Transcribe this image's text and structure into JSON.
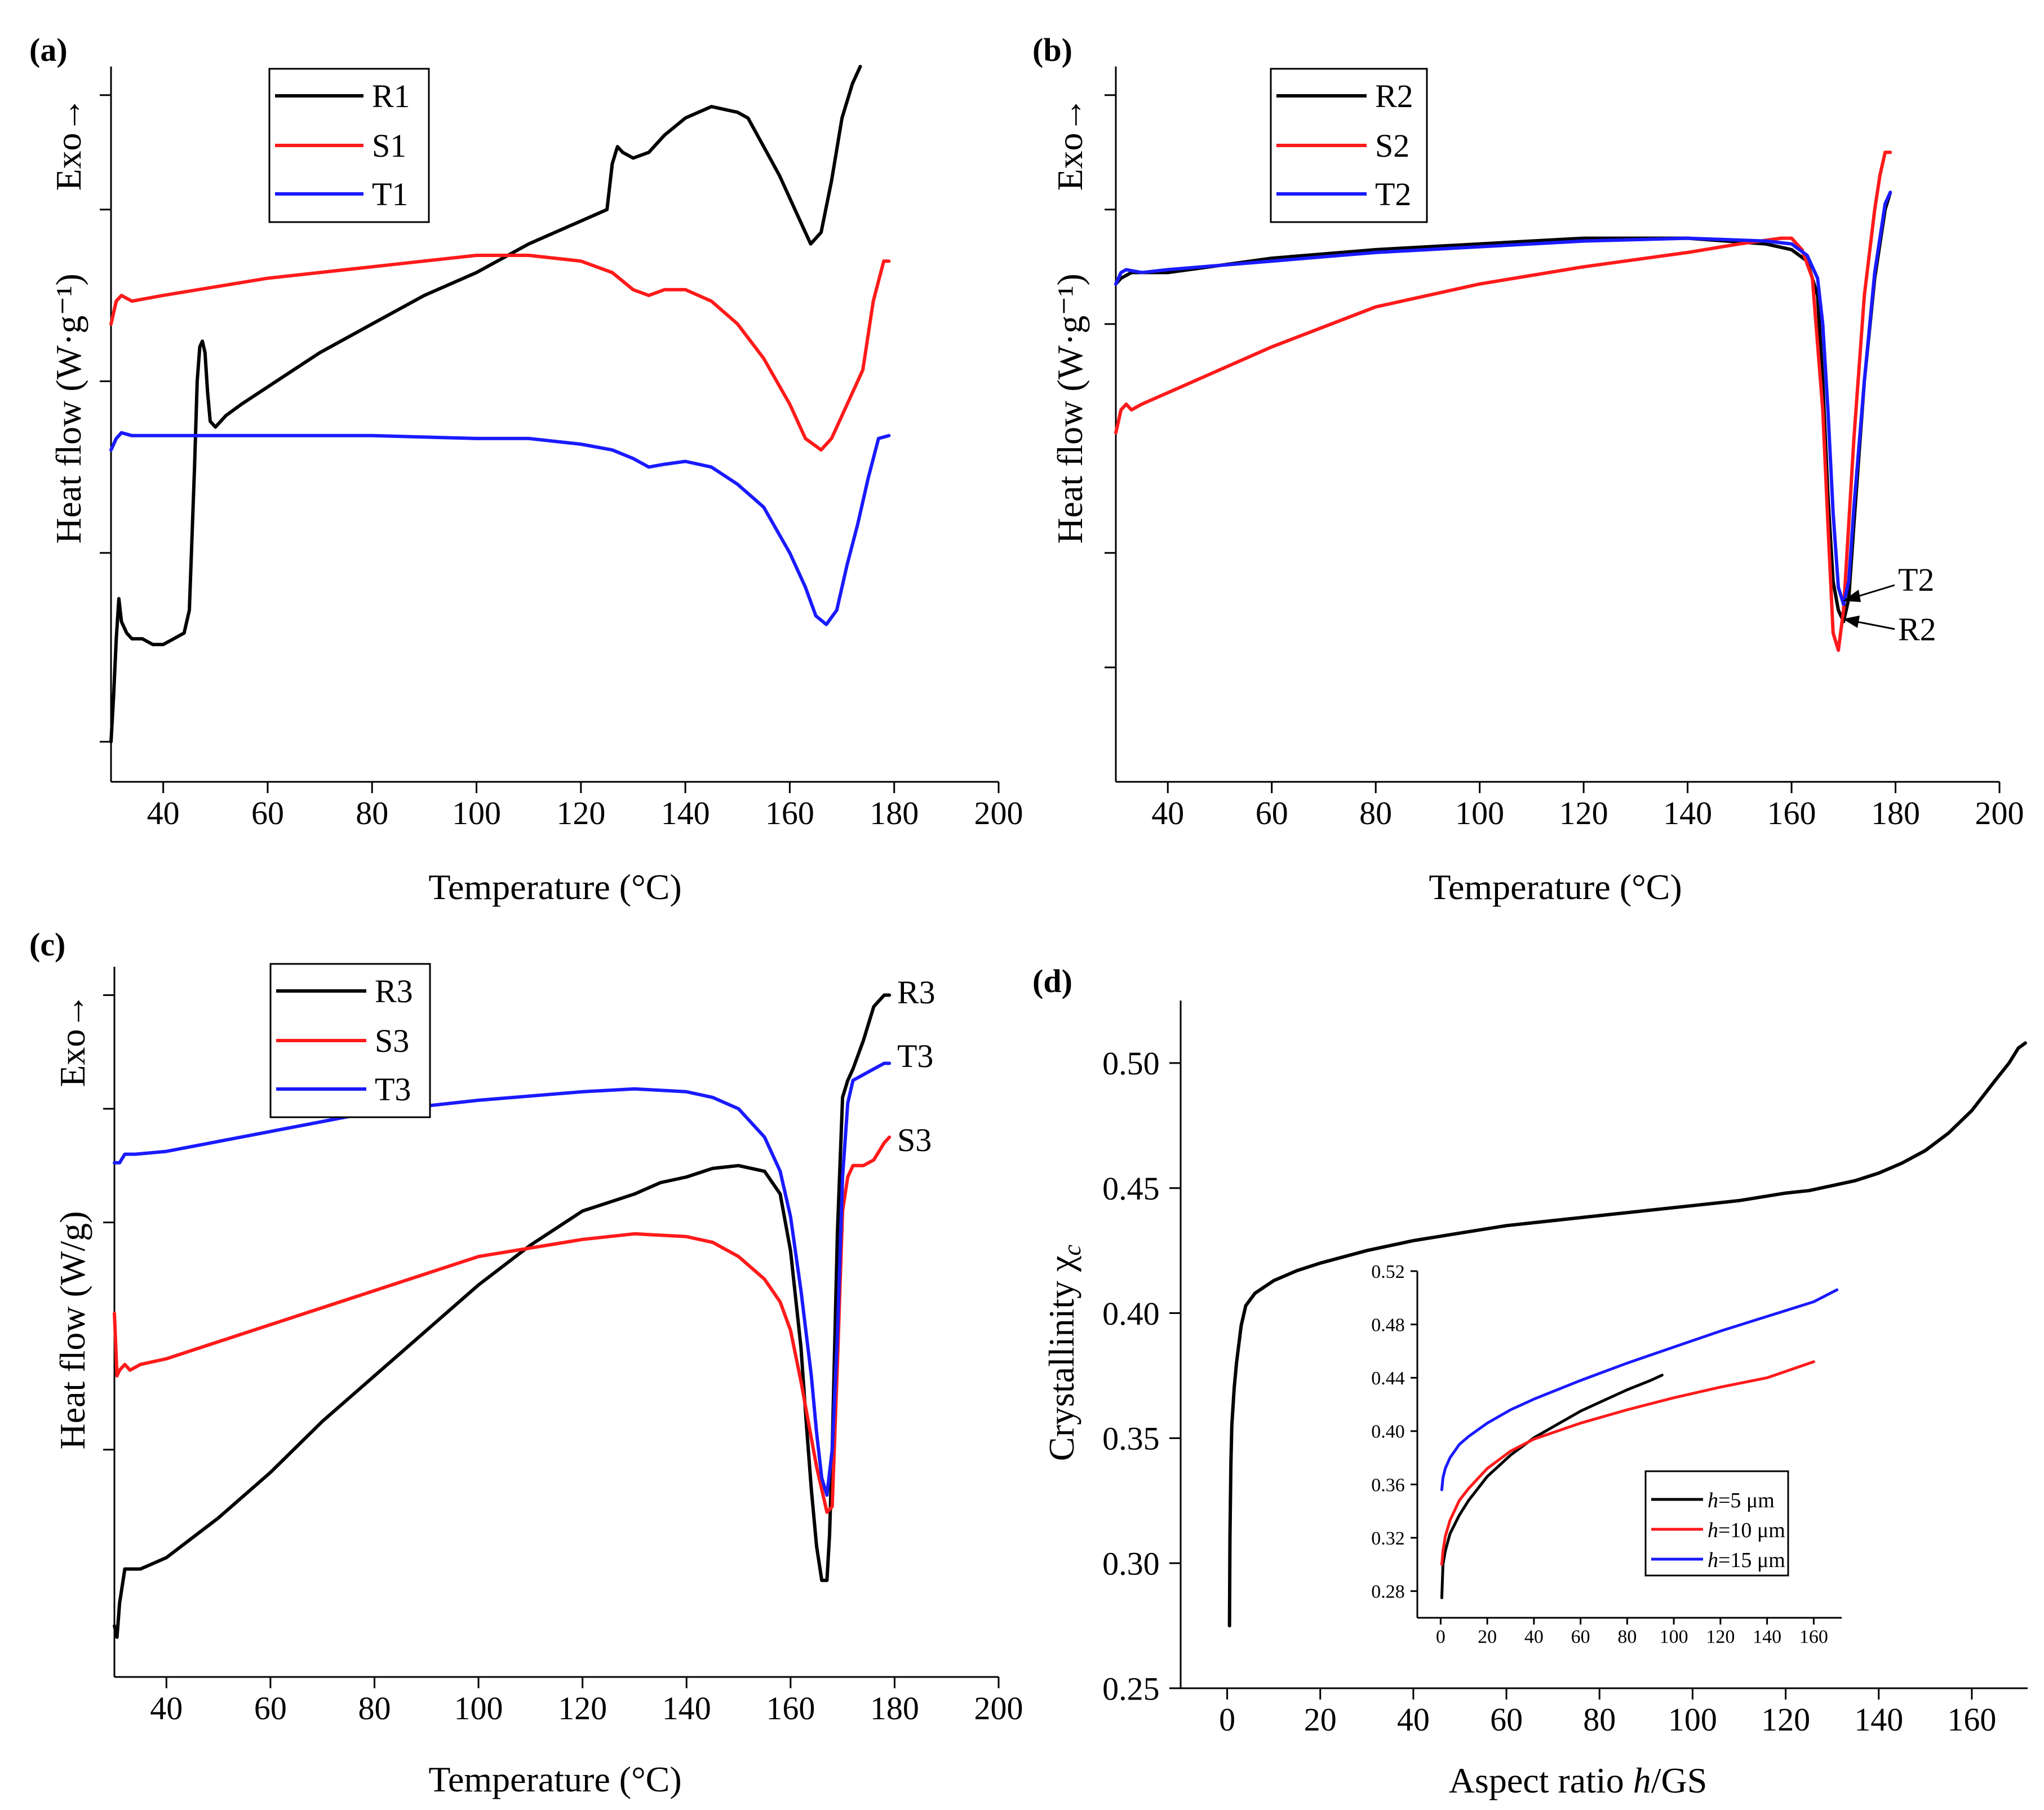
{
  "colors": {
    "black": "#000000",
    "red": "#ff1a1a",
    "blue": "#1a1aff",
    "axis": "#000000"
  },
  "chart_data": [
    {
      "panel_label": "(a)",
      "type": "line",
      "xlabel": "Temperature (°C)",
      "ylabel": "Heat flow (W·g⁻¹)",
      "exo_label": "Exo→",
      "xlim": [
        30,
        200
      ],
      "xticks": [
        40,
        60,
        80,
        100,
        120,
        140,
        160,
        180,
        200
      ],
      "ylim": [
        0,
        12.5
      ],
      "y_ticks_unlabeled": [
        0.7,
        4,
        7,
        10,
        12
      ],
      "legend": [
        "R1",
        "S1",
        "T1"
      ],
      "series": [
        {
          "name": "R1",
          "color": "black",
          "x": [
            30,
            30.5,
            31,
            31.5,
            32,
            33,
            34,
            36,
            38,
            40,
            42,
            44,
            45,
            46,
            46.5,
            47,
            47.5,
            48,
            48.5,
            49,
            50,
            52,
            55,
            60,
            70,
            80,
            90,
            100,
            110,
            120,
            125,
            126,
            127,
            128,
            130,
            133,
            136,
            140,
            145,
            150,
            152,
            155,
            158,
            160,
            162,
            164,
            166,
            168,
            170,
            172,
            173.5
          ],
          "y": [
            0.7,
            1.5,
            2.5,
            3.2,
            2.8,
            2.6,
            2.5,
            2.5,
            2.4,
            2.4,
            2.5,
            2.6,
            3.0,
            5.5,
            7.0,
            7.6,
            7.7,
            7.5,
            6.8,
            6.3,
            6.2,
            6.4,
            6.6,
            6.9,
            7.5,
            8.0,
            8.5,
            8.9,
            9.4,
            9.8,
            10.0,
            10.8,
            11.1,
            11.0,
            10.9,
            11.0,
            11.3,
            11.6,
            11.8,
            11.7,
            11.6,
            11.1,
            10.6,
            10.2,
            9.8,
            9.4,
            9.6,
            10.5,
            11.6,
            12.2,
            12.5
          ]
        },
        {
          "name": "S1",
          "color": "red",
          "x": [
            30,
            31,
            32,
            34,
            40,
            60,
            80,
            100,
            110,
            120,
            126,
            130,
            133,
            136,
            140,
            145,
            150,
            155,
            160,
            163,
            166,
            168,
            170,
            172,
            174,
            176,
            178,
            179
          ],
          "y": [
            8.0,
            8.4,
            8.5,
            8.4,
            8.5,
            8.8,
            9.0,
            9.2,
            9.2,
            9.1,
            8.9,
            8.6,
            8.5,
            8.6,
            8.6,
            8.4,
            8.0,
            7.4,
            6.6,
            6.0,
            5.8,
            6.0,
            6.4,
            6.8,
            7.2,
            8.4,
            9.1,
            9.1
          ]
        },
        {
          "name": "T1",
          "color": "blue",
          "x": [
            30,
            31,
            32,
            34,
            40,
            60,
            80,
            100,
            110,
            120,
            126,
            130,
            133,
            136,
            140,
            145,
            150,
            155,
            160,
            163,
            165,
            167,
            169,
            171,
            173,
            175,
            177,
            179
          ],
          "y": [
            5.8,
            6.0,
            6.1,
            6.05,
            6.05,
            6.05,
            6.05,
            6.0,
            6.0,
            5.9,
            5.8,
            5.65,
            5.5,
            5.55,
            5.6,
            5.5,
            5.2,
            4.8,
            4.0,
            3.4,
            2.9,
            2.75,
            3.0,
            3.8,
            4.5,
            5.3,
            6.0,
            6.05
          ]
        }
      ]
    },
    {
      "panel_label": "(b)",
      "type": "line",
      "xlabel": "Temperature (°C)",
      "ylabel": "Heat flow (W·g⁻¹)",
      "exo_label": "Exo→",
      "xlim": [
        30,
        200
      ],
      "xticks": [
        40,
        60,
        80,
        100,
        120,
        140,
        160,
        180,
        200
      ],
      "ylim": [
        0,
        12.5
      ],
      "y_ticks_unlabeled": [
        2,
        4,
        8,
        10,
        12
      ],
      "legend": [
        "R2",
        "S2",
        "T2"
      ],
      "annotations": [
        "T2",
        "R2"
      ],
      "series": [
        {
          "name": "R2",
          "color": "black",
          "x": [
            30,
            31,
            33,
            40,
            60,
            80,
            100,
            120,
            140,
            155,
            160,
            163,
            165,
            166,
            167,
            168,
            169,
            170,
            171,
            172,
            174,
            176,
            178,
            179
          ],
          "y": [
            8.7,
            8.8,
            8.9,
            8.9,
            9.15,
            9.3,
            9.4,
            9.5,
            9.5,
            9.4,
            9.3,
            9.1,
            8.5,
            7.0,
            5.0,
            3.5,
            3.0,
            2.8,
            3.2,
            4.5,
            7.0,
            8.8,
            10.0,
            10.3
          ]
        },
        {
          "name": "S2",
          "color": "red",
          "x": [
            30,
            31,
            32,
            33,
            35,
            40,
            60,
            80,
            100,
            120,
            140,
            150,
            158,
            160,
            162,
            164,
            166,
            167,
            168,
            169,
            170,
            172,
            174,
            176,
            177,
            178,
            179
          ],
          "y": [
            6.1,
            6.5,
            6.6,
            6.5,
            6.6,
            6.8,
            7.6,
            8.3,
            8.7,
            9.0,
            9.25,
            9.4,
            9.5,
            9.5,
            9.3,
            8.8,
            6.5,
            4.5,
            2.6,
            2.3,
            3.0,
            6.0,
            8.5,
            10.0,
            10.6,
            11.0,
            11.0
          ]
        },
        {
          "name": "T2",
          "color": "blue",
          "x": [
            30,
            31,
            32,
            35,
            40,
            60,
            80,
            100,
            120,
            140,
            155,
            160,
            163,
            165,
            166,
            167,
            168,
            169,
            170,
            171,
            172,
            174,
            176,
            178,
            179
          ],
          "y": [
            8.7,
            8.9,
            8.95,
            8.9,
            8.95,
            9.1,
            9.25,
            9.35,
            9.45,
            9.5,
            9.45,
            9.4,
            9.2,
            8.8,
            8.0,
            6.5,
            4.7,
            3.4,
            3.1,
            3.5,
            4.8,
            7.0,
            8.9,
            10.1,
            10.3
          ]
        }
      ]
    },
    {
      "panel_label": "(c)",
      "type": "line",
      "xlabel": "Temperature (°C)",
      "ylabel": "Heat flow (W/g)",
      "exo_label": "Exo→",
      "xlim": [
        30,
        200
      ],
      "xticks": [
        40,
        60,
        80,
        100,
        120,
        140,
        160,
        180,
        200
      ],
      "ylim": [
        0,
        12.5
      ],
      "y_ticks_unlabeled": [
        4,
        8,
        10,
        12
      ],
      "legend": [
        "R3",
        "S3",
        "T3"
      ],
      "annotations": [
        "R3",
        "T3",
        "S3"
      ],
      "series": [
        {
          "name": "R3",
          "color": "black",
          "x": [
            30,
            30.5,
            31,
            32,
            33,
            35,
            40,
            50,
            60,
            70,
            80,
            90,
            100,
            110,
            120,
            125,
            130,
            135,
            140,
            145,
            150,
            155,
            158,
            160,
            162,
            163,
            164,
            165,
            166,
            167,
            167.5,
            168,
            169,
            170,
            171,
            172,
            174,
            176,
            178,
            179
          ],
          "y": [
            0.9,
            0.7,
            1.3,
            1.9,
            1.9,
            1.9,
            2.1,
            2.8,
            3.6,
            4.5,
            5.3,
            6.1,
            6.9,
            7.6,
            8.2,
            8.35,
            8.5,
            8.7,
            8.8,
            8.95,
            9.0,
            8.9,
            8.5,
            7.5,
            5.8,
            4.5,
            3.3,
            2.3,
            1.7,
            1.7,
            2.5,
            4.0,
            7.8,
            10.2,
            10.5,
            10.7,
            11.2,
            11.8,
            12.0,
            12.0
          ]
        },
        {
          "name": "S3",
          "color": "red",
          "x": [
            30,
            30.5,
            31,
            32,
            33,
            35,
            40,
            60,
            80,
            100,
            120,
            130,
            140,
            145,
            150,
            155,
            158,
            160,
            162,
            164,
            165,
            166,
            167,
            168,
            169,
            170,
            171,
            172,
            174,
            176,
            178,
            179
          ],
          "y": [
            6.4,
            5.3,
            5.4,
            5.5,
            5.4,
            5.5,
            5.6,
            6.2,
            6.8,
            7.4,
            7.7,
            7.8,
            7.75,
            7.65,
            7.4,
            7.0,
            6.6,
            6.1,
            5.2,
            4.2,
            3.7,
            3.3,
            2.9,
            3.0,
            5.5,
            8.2,
            8.8,
            9.0,
            9.0,
            9.1,
            9.4,
            9.5
          ]
        },
        {
          "name": "T3",
          "color": "blue",
          "x": [
            30,
            31,
            32,
            34,
            40,
            60,
            80,
            100,
            120,
            130,
            140,
            145,
            150,
            155,
            158,
            160,
            162,
            164,
            165,
            166,
            167,
            168,
            169,
            170,
            171,
            172,
            174,
            176,
            178,
            179
          ],
          "y": [
            9.05,
            9.05,
            9.2,
            9.2,
            9.25,
            9.6,
            9.95,
            10.15,
            10.3,
            10.35,
            10.3,
            10.2,
            10.0,
            9.5,
            8.9,
            8.1,
            6.8,
            5.3,
            4.3,
            3.5,
            3.2,
            4.0,
            6.0,
            8.8,
            10.1,
            10.5,
            10.6,
            10.7,
            10.8,
            10.8
          ]
        }
      ]
    },
    {
      "panel_label": "(d)",
      "type": "line",
      "xlabel": "Aspect ratio h/GS",
      "ylabel": "Crystallinity χc",
      "xlim": [
        -10,
        172
      ],
      "xticks": [
        0,
        20,
        40,
        60,
        80,
        100,
        120,
        140,
        160
      ],
      "ylim": [
        0.25,
        0.525
      ],
      "yticks": [
        "0.25",
        "0.30",
        "0.35",
        "0.40",
        "0.45",
        "0.50"
      ],
      "series": [
        {
          "name": "main",
          "color": "black",
          "x": [
            0.5,
            0.6,
            0.8,
            1,
            1.5,
            2,
            3,
            4,
            6,
            10,
            15,
            20,
            30,
            40,
            50,
            60,
            70,
            80,
            90,
            100,
            110,
            120,
            125,
            130,
            135,
            140,
            145,
            150,
            155,
            160,
            165,
            168,
            170,
            171.5
          ],
          "y": [
            0.275,
            0.31,
            0.34,
            0.355,
            0.37,
            0.38,
            0.395,
            0.403,
            0.408,
            0.413,
            0.417,
            0.42,
            0.425,
            0.429,
            0.432,
            0.435,
            0.437,
            0.439,
            0.441,
            0.443,
            0.445,
            0.448,
            0.449,
            0.451,
            0.453,
            0.456,
            0.46,
            0.465,
            0.472,
            0.481,
            0.493,
            0.5,
            0.506,
            0.508
          ]
        }
      ],
      "inset": {
        "xlim": [
          -10,
          172
        ],
        "xticks": [
          0,
          20,
          40,
          60,
          80,
          100,
          120,
          140,
          160
        ],
        "ylim": [
          0.26,
          0.52
        ],
        "yticks": [
          "0.28",
          "0.32",
          "0.36",
          "0.40",
          "0.44",
          "0.48",
          "0.52"
        ],
        "legend": [
          "h=5 μm",
          "h=10 μm",
          "h=15 μm"
        ],
        "series": [
          {
            "name": "h=5 μm",
            "color": "black",
            "x": [
              0.5,
              1,
              2,
              4,
              8,
              12,
              20,
              30,
              40,
              50,
              60,
              70,
              80,
              90,
              95
            ],
            "y": [
              0.275,
              0.3,
              0.31,
              0.323,
              0.337,
              0.348,
              0.366,
              0.382,
              0.395,
              0.405,
              0.415,
              0.423,
              0.431,
              0.438,
              0.442
            ]
          },
          {
            "name": "h=10 μm",
            "color": "red",
            "x": [
              0.5,
              1,
              2,
              4,
              8,
              12,
              20,
              30,
              40,
              60,
              80,
              100,
              120,
              140,
              160
            ],
            "y": [
              0.3,
              0.31,
              0.321,
              0.333,
              0.348,
              0.357,
              0.372,
              0.385,
              0.394,
              0.406,
              0.416,
              0.425,
              0.433,
              0.44,
              0.452
            ]
          },
          {
            "name": "h=15 μm",
            "color": "blue",
            "x": [
              0.5,
              1,
              2,
              4,
              8,
              12,
              20,
              30,
              40,
              60,
              80,
              100,
              120,
              140,
              160,
              170
            ],
            "y": [
              0.356,
              0.365,
              0.372,
              0.38,
              0.39,
              0.396,
              0.406,
              0.416,
              0.424,
              0.438,
              0.451,
              0.463,
              0.475,
              0.486,
              0.497,
              0.506
            ]
          }
        ]
      }
    }
  ]
}
